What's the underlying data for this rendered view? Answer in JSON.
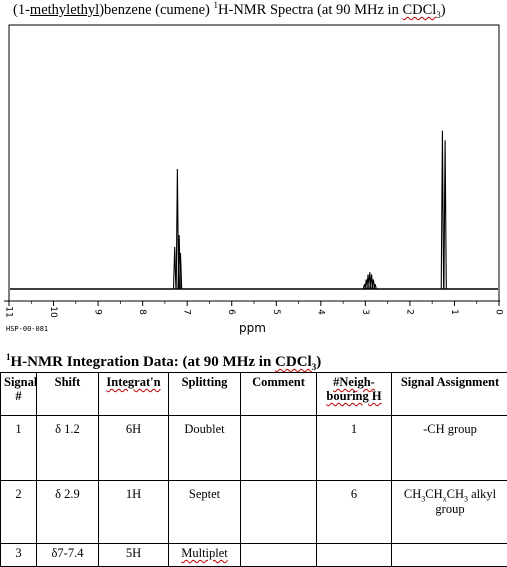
{
  "document": {
    "title_part1": "(1-",
    "title_part2": "methylethyl",
    "title_part3": ")benzene",
    "title_part4": " (cumene) ",
    "title_sup": "1",
    "title_part5": "H-NMR Spectra (at 90 MHz in ",
    "title_part6": "CDCl",
    "title_sub": "3",
    "title_part7": ")"
  },
  "spectrum": {
    "axis_unit": "ppm",
    "axis_ticks": [
      "11",
      "10",
      "9",
      "8",
      "7",
      "6",
      "5",
      "4",
      "3",
      "2",
      "1",
      "0"
    ],
    "source_code": "HSP-00-081",
    "xlim": [
      11,
      0
    ],
    "peaks": [
      {
        "name": "aromatic-multiplet",
        "ppm": [
          7.28,
          7.22,
          7.18,
          7.15
        ],
        "heights": [
          0.35,
          1.0,
          0.45,
          0.3
        ]
      },
      {
        "name": "ch-septet",
        "ppm": [
          3.02,
          2.98,
          2.94,
          2.9,
          2.86,
          2.82,
          2.78
        ],
        "heights": [
          0.04,
          0.08,
          0.12,
          0.14,
          0.12,
          0.08,
          0.04
        ]
      },
      {
        "name": "ch3-doublet",
        "ppm": [
          1.27,
          1.21
        ],
        "heights": [
          1.32,
          1.24
        ]
      }
    ]
  },
  "integration": {
    "heading_part1": "1",
    "heading_part2": "H-NMR Integration Data: (at 90 MHz in ",
    "heading_part3": "CDCl",
    "heading_sub": "3",
    "heading_part4": ")",
    "columns": {
      "signal": "Signal #",
      "shift": "Shift",
      "integration": "Integrat'n",
      "splitting": "Splitting",
      "comment": "Comment",
      "neighbouring": "#Neigh-bouring H",
      "assignment": "Signal Assignment"
    },
    "rows": [
      {
        "signal": "1",
        "shift": "δ 1.2",
        "integration": "6H",
        "splitting": "Doublet",
        "comment": "",
        "neighbouring": "1",
        "assignment": "-CH group"
      },
      {
        "signal": "2",
        "shift": "δ 2.9",
        "integration": "1H",
        "splitting": "Septet",
        "comment": "",
        "neighbouring": "6",
        "assignment_a": "CH",
        "assignment_s1": "3",
        "assignment_b": "CH",
        "assignment_s2": "x",
        "assignment_c": "CH",
        "assignment_s3": "3",
        "assignment_d": " alkyl group"
      },
      {
        "signal": "3",
        "shift": "δ7-7.4",
        "integration": "5H",
        "splitting": "Multiplet",
        "comment": "",
        "neighbouring": "",
        "assignment": ""
      }
    ]
  }
}
